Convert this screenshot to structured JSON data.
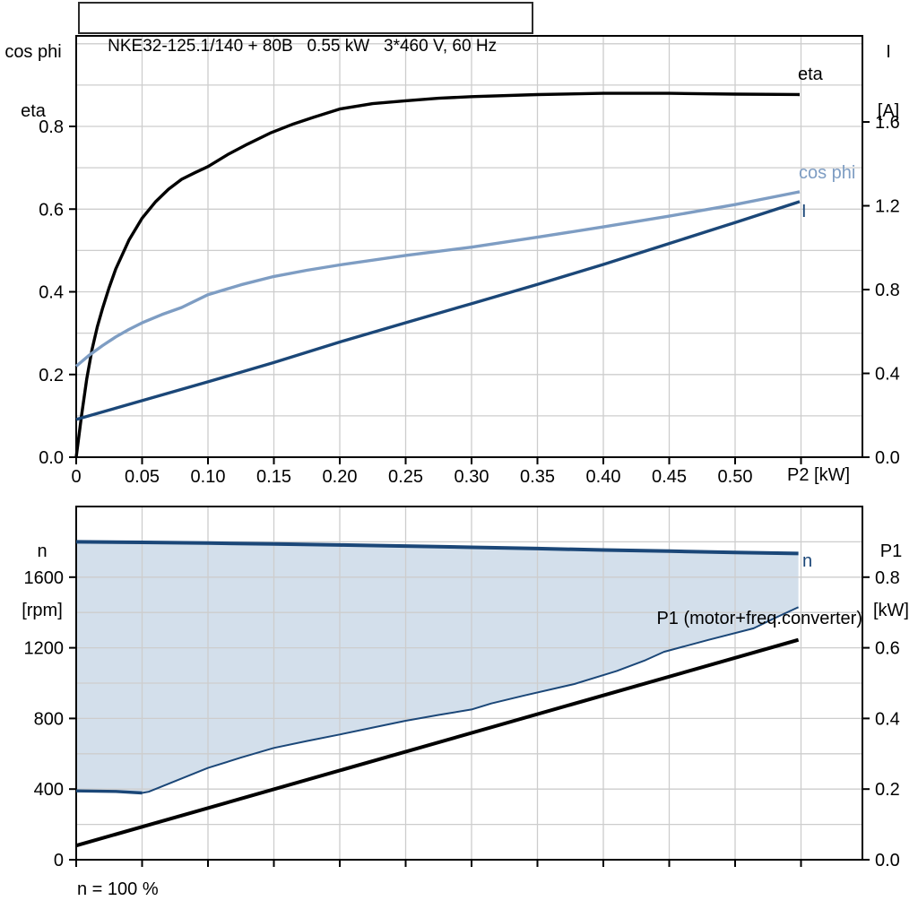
{
  "title_box": {
    "text": "NKE32-125.1/140 + 80B   0.55 kW   3*460 V, 60 Hz"
  },
  "colors": {
    "eta": "#000000",
    "cos_phi": "#7e9dc3",
    "current": "#1b4778",
    "fill": "#d3dfeb",
    "grid": "#cdcdcd",
    "frame": "#000000"
  },
  "labels": {
    "top_left_line1": "cos phi",
    "top_left_line2": "eta",
    "top_right_line1": "I",
    "top_right_line2": "[A]",
    "bottom_left_line1": "n",
    "bottom_left_line2": "[rpm]",
    "bottom_right_line1": "P1",
    "bottom_right_line2": "[kW]",
    "x_axis": "P2 [kW]",
    "curve_eta": "eta",
    "curve_cos_phi": "cos phi",
    "curve_current": "I",
    "curve_n": "n",
    "curve_p1": "P1 (motor+freq.converter)",
    "footnote": "n = 100 %"
  },
  "chart_data": [
    {
      "type": "line",
      "title": "NKE32-125.1/140 + 80B   0.55 kW   3*460 V, 60 Hz",
      "xlabel": "P2 [kW]",
      "ylabel_left": "cos phi / eta",
      "ylabel_right": "I [A]",
      "x": {
        "min": 0,
        "max": 0.5966,
        "grid_values": [
          0.05,
          0.1,
          0.15,
          0.2,
          0.25,
          0.3,
          0.35,
          0.4,
          0.45,
          0.5,
          0.55
        ],
        "ticks": [
          {
            "v": 0,
            "t": "0"
          },
          {
            "v": 0.05,
            "t": "0.05"
          },
          {
            "v": 0.1,
            "t": "0.10"
          },
          {
            "v": 0.15,
            "t": "0.15"
          },
          {
            "v": 0.2,
            "t": "0.20"
          },
          {
            "v": 0.25,
            "t": "0.25"
          },
          {
            "v": 0.3,
            "t": "0.30"
          },
          {
            "v": 0.35,
            "t": "0.35"
          },
          {
            "v": 0.4,
            "t": "0.40"
          },
          {
            "v": 0.45,
            "t": "0.45"
          },
          {
            "v": 0.5,
            "t": "0.50"
          },
          {
            "v": 0.55,
            "t": ""
          }
        ]
      },
      "y_left": {
        "min": 0,
        "max": 1.019,
        "grid_values": [
          0.1,
          0.2,
          0.3,
          0.4,
          0.5,
          0.6,
          0.7,
          0.8,
          0.9,
          1.0
        ],
        "ticks": [
          {
            "v": 0,
            "t": "0.0"
          },
          {
            "v": 0.2,
            "t": "0.2"
          },
          {
            "v": 0.4,
            "t": "0.4"
          },
          {
            "v": 0.6,
            "t": "0.6"
          },
          {
            "v": 0.8,
            "t": "0.8"
          }
        ]
      },
      "y_right": {
        "min": 0,
        "max": 2.011,
        "ticks": [
          {
            "v": 0,
            "t": "0.0"
          },
          {
            "v": 0.4,
            "t": "0.4"
          },
          {
            "v": 0.8,
            "t": "0.8"
          },
          {
            "v": 1.2,
            "t": "1.2"
          },
          {
            "v": 1.6,
            "t": "1.6"
          }
        ]
      },
      "series": [
        {
          "name": "eta",
          "axis": "left",
          "color_key": "eta",
          "width": 3.4,
          "points": [
            [
              0,
              0
            ],
            [
              0.004,
              0.1
            ],
            [
              0.008,
              0.19
            ],
            [
              0.012,
              0.26
            ],
            [
              0.016,
              0.315
            ],
            [
              0.02,
              0.36
            ],
            [
              0.025,
              0.41
            ],
            [
              0.03,
              0.455
            ],
            [
              0.04,
              0.525
            ],
            [
              0.05,
              0.578
            ],
            [
              0.06,
              0.617
            ],
            [
              0.07,
              0.648
            ],
            [
              0.08,
              0.672
            ],
            [
              0.09,
              0.688
            ],
            [
              0.1,
              0.703
            ],
            [
              0.115,
              0.732
            ],
            [
              0.13,
              0.757
            ],
            [
              0.148,
              0.785
            ],
            [
              0.165,
              0.806
            ],
            [
              0.18,
              0.822
            ],
            [
              0.2,
              0.842
            ],
            [
              0.225,
              0.855
            ],
            [
              0.25,
              0.862
            ],
            [
              0.275,
              0.868
            ],
            [
              0.3,
              0.872
            ],
            [
              0.35,
              0.877
            ],
            [
              0.4,
              0.88
            ],
            [
              0.45,
              0.88
            ],
            [
              0.5,
              0.878
            ],
            [
              0.549,
              0.877
            ]
          ]
        },
        {
          "name": "cos phi",
          "axis": "left",
          "color_key": "cos_phi",
          "width": 3.4,
          "points": [
            [
              0,
              0.22
            ],
            [
              0.01,
              0.247
            ],
            [
              0.02,
              0.27
            ],
            [
              0.03,
              0.291
            ],
            [
              0.04,
              0.309
            ],
            [
              0.05,
              0.325
            ],
            [
              0.065,
              0.345
            ],
            [
              0.08,
              0.362
            ],
            [
              0.1,
              0.393
            ],
            [
              0.125,
              0.417
            ],
            [
              0.15,
              0.437
            ],
            [
              0.175,
              0.452
            ],
            [
              0.2,
              0.465
            ],
            [
              0.25,
              0.488
            ],
            [
              0.3,
              0.508
            ],
            [
              0.35,
              0.532
            ],
            [
              0.4,
              0.557
            ],
            [
              0.45,
              0.583
            ],
            [
              0.5,
              0.611
            ],
            [
              0.549,
              0.642
            ]
          ]
        },
        {
          "name": "I",
          "axis": "right",
          "color_key": "current",
          "width": 3.4,
          "points": [
            [
              0,
              0.18
            ],
            [
              0.05,
              0.27
            ],
            [
              0.1,
              0.36
            ],
            [
              0.15,
              0.452
            ],
            [
              0.2,
              0.55
            ],
            [
              0.25,
              0.642
            ],
            [
              0.3,
              0.733
            ],
            [
              0.35,
              0.825
            ],
            [
              0.4,
              0.92
            ],
            [
              0.45,
              1.02
            ],
            [
              0.5,
              1.12
            ],
            [
              0.549,
              1.22
            ]
          ]
        }
      ]
    },
    {
      "type": "line+area",
      "title": "",
      "xlabel": "",
      "ylabel_left": "n [rpm]",
      "ylabel_right": "P1 [kW]",
      "footnote": "n = 100 %",
      "x": {
        "min": 0,
        "max": 0.5966,
        "grid_values": [
          0.05,
          0.1,
          0.15,
          0.2,
          0.25,
          0.3,
          0.35,
          0.4,
          0.45,
          0.5,
          0.55
        ],
        "ticks": [
          {
            "v": 0,
            "t": ""
          },
          {
            "v": 0.05,
            "t": ""
          },
          {
            "v": 0.1,
            "t": ""
          },
          {
            "v": 0.15,
            "t": ""
          },
          {
            "v": 0.2,
            "t": ""
          },
          {
            "v": 0.25,
            "t": ""
          },
          {
            "v": 0.3,
            "t": ""
          },
          {
            "v": 0.35,
            "t": ""
          },
          {
            "v": 0.4,
            "t": ""
          },
          {
            "v": 0.45,
            "t": ""
          },
          {
            "v": 0.5,
            "t": ""
          },
          {
            "v": 0.55,
            "t": ""
          }
        ]
      },
      "y_left": {
        "min": 0,
        "max": 2000,
        "grid_values": [
          200,
          400,
          600,
          800,
          1000,
          1200,
          1400,
          1600,
          1800
        ],
        "ticks": [
          {
            "v": 0,
            "t": "0"
          },
          {
            "v": 400,
            "t": "400"
          },
          {
            "v": 800,
            "t": "800"
          },
          {
            "v": 1200,
            "t": "1200"
          },
          {
            "v": 1600,
            "t": "1600"
          }
        ]
      },
      "y_right": {
        "min": 0,
        "max": 1.0,
        "ticks": [
          {
            "v": 0,
            "t": "0.0"
          },
          {
            "v": 0.2,
            "t": "0.2"
          },
          {
            "v": 0.4,
            "t": "0.4"
          },
          {
            "v": 0.6,
            "t": "0.6"
          },
          {
            "v": 0.8,
            "t": "0.8"
          }
        ]
      },
      "area": {
        "upper": "n",
        "lower": "n min",
        "color_key": "fill"
      },
      "series": [
        {
          "name": "n",
          "axis": "left",
          "color_key": "current",
          "width": 4,
          "points": [
            [
              0,
              1800
            ],
            [
              0.05,
              1797
            ],
            [
              0.1,
              1793
            ],
            [
              0.15,
              1788
            ],
            [
              0.2,
              1782
            ],
            [
              0.25,
              1776
            ],
            [
              0.3,
              1769
            ],
            [
              0.35,
              1762
            ],
            [
              0.4,
              1754
            ],
            [
              0.45,
              1747
            ],
            [
              0.5,
              1740
            ],
            [
              0.548,
              1734
            ]
          ]
        },
        {
          "name": "n min",
          "axis": "left",
          "color_key": "current",
          "width": 2,
          "points": [
            [
              0,
              390
            ],
            [
              0.03,
              387
            ],
            [
              0.05,
              378
            ],
            [
              0.055,
              385
            ],
            [
              0.07,
              430
            ],
            [
              0.1,
              520
            ],
            [
              0.125,
              578
            ],
            [
              0.15,
              633
            ],
            [
              0.175,
              672
            ],
            [
              0.2,
              709
            ],
            [
              0.225,
              748
            ],
            [
              0.25,
              787
            ],
            [
              0.275,
              820
            ],
            [
              0.3,
              851
            ],
            [
              0.315,
              885
            ],
            [
              0.34,
              930
            ],
            [
              0.378,
              995
            ],
            [
              0.41,
              1068
            ],
            [
              0.432,
              1130
            ],
            [
              0.446,
              1177
            ],
            [
              0.48,
              1245
            ],
            [
              0.514,
              1310
            ],
            [
              0.53,
              1368
            ],
            [
              0.548,
              1430
            ]
          ]
        },
        {
          "name": "n min start",
          "axis": "left",
          "color_key": "current",
          "width": 3.4,
          "points": [
            [
              0,
              390
            ],
            [
              0.03,
              387
            ],
            [
              0.05,
              378
            ]
          ]
        },
        {
          "name": "P1 (motor+freq.converter)",
          "axis": "right",
          "color_key": "eta",
          "width": 4,
          "points": [
            [
              0,
              0.04
            ],
            [
              0.548,
              0.6225
            ]
          ]
        }
      ]
    }
  ]
}
